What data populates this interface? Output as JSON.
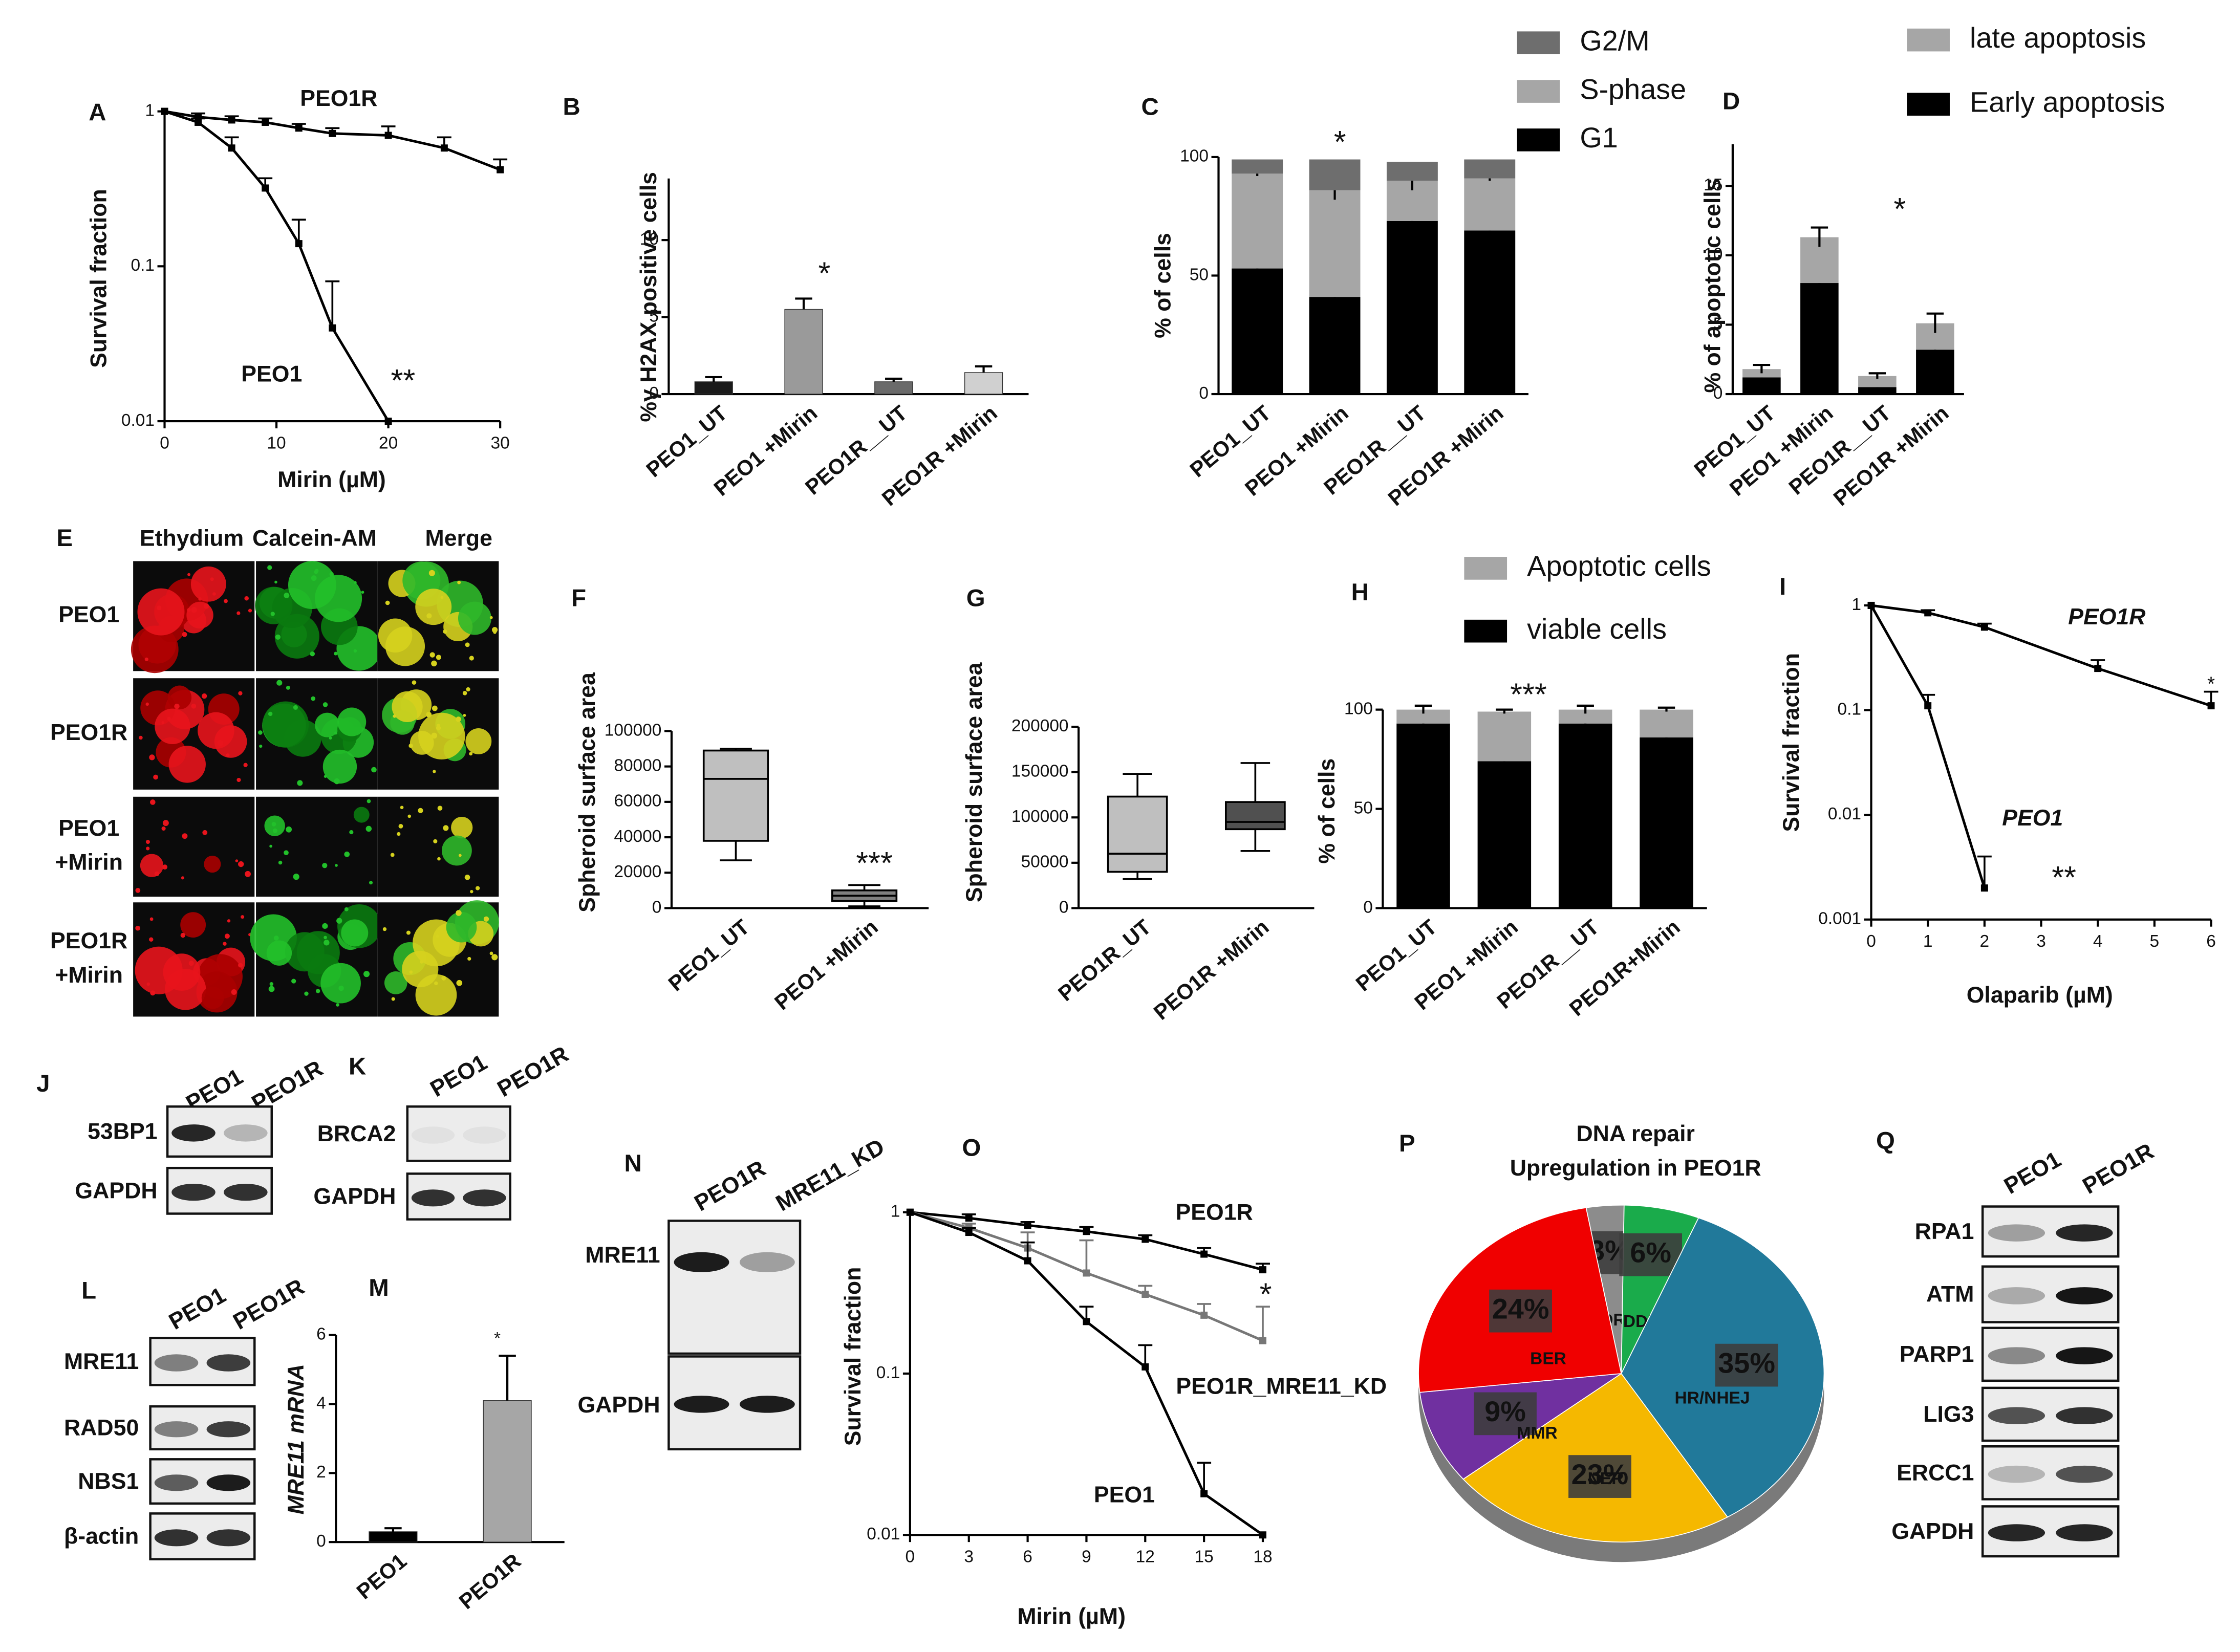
{
  "chart_data": [
    {
      "panel": "A",
      "type": "line",
      "log_y": true,
      "xlabel": "Mirin (µM)",
      "ylabel": "Survival fraction",
      "xlim": [
        0,
        30
      ],
      "xticks": [
        0,
        10,
        20,
        30
      ],
      "ylim": [
        0.01,
        1
      ],
      "yticks": [
        0.01,
        0.1,
        1
      ],
      "series": [
        {
          "name": "PEO1R",
          "color": "#000000",
          "x": [
            0,
            3,
            6,
            9,
            12,
            15,
            20,
            25,
            30
          ],
          "values": [
            1,
            0.92,
            0.88,
            0.85,
            0.78,
            0.72,
            0.7,
            0.58,
            0.42
          ],
          "errors": [
            0,
            0.05,
            0.05,
            0.05,
            0.05,
            0.06,
            0.1,
            0.1,
            0.07
          ]
        },
        {
          "name": "PEO1",
          "color": "#000000",
          "x": [
            0,
            3,
            6,
            9,
            12,
            15,
            20
          ],
          "values": [
            1,
            0.85,
            0.58,
            0.32,
            0.14,
            0.04,
            0.01
          ],
          "errors": [
            0,
            0.05,
            0.1,
            0.05,
            0.06,
            0.04,
            0
          ]
        }
      ],
      "annotations": [
        "**"
      ]
    },
    {
      "panel": "B",
      "type": "bar",
      "ylabel": "%γ H2AX positive  cells",
      "categories": [
        "PEO1_UT",
        "PEO1 +Mirin",
        "PEO1R__UT",
        "PEO1R +Mirin"
      ],
      "values": [
        0.8,
        5.5,
        0.8,
        1.4
      ],
      "errors": [
        0.3,
        0.7,
        0.2,
        0.4
      ],
      "colors": [
        "#1a1a1a",
        "#9a9a9a",
        "#6a6a6a",
        "#d0d0d0"
      ],
      "ylim": [
        0,
        14
      ],
      "yticks": [
        0,
        5,
        10
      ],
      "annotations": [
        "*"
      ]
    },
    {
      "panel": "C",
      "type": "stacked_bar",
      "ylabel": "% of cells",
      "categories": [
        "PEO1_UT",
        "PEO1 +Mirin",
        "PEO1R__UT",
        "PEO1R +Mirin"
      ],
      "ylim": [
        0,
        100
      ],
      "yticks": [
        0,
        50,
        100
      ],
      "series": [
        {
          "name": "G1",
          "color": "#000000",
          "values": [
            53,
            41,
            73,
            69
          ],
          "errors": [
            2,
            1,
            2,
            1
          ]
        },
        {
          "name": "S-phase",
          "color": "#a6a6a6",
          "values": [
            40,
            45,
            17,
            22
          ],
          "errors": [
            1,
            4,
            4,
            1
          ]
        },
        {
          "name": "G2/M",
          "color": "#6e6e6e",
          "values": [
            6,
            13,
            8,
            8
          ]
        }
      ],
      "annotations": [
        "*"
      ]
    },
    {
      "panel": "D",
      "type": "stacked_bar",
      "ylabel": "% of apoptotic cells",
      "categories": [
        "PEO1_UT",
        "PEO1 +Mirin",
        "PEO1R__UT",
        "PEO1R +Mirin"
      ],
      "ylim": [
        0,
        18
      ],
      "yticks": [
        0,
        5,
        10,
        15
      ],
      "series": [
        {
          "name": "Early apoptosis",
          "color": "#000000",
          "values": [
            1.2,
            8,
            0.5,
            3.2
          ],
          "errors": [
            0.3,
            1.5,
            0.3,
            1.2
          ]
        },
        {
          "name": "late apoptosis",
          "color": "#a6a6a6",
          "values": [
            0.6,
            3.3,
            0.8,
            1.9
          ],
          "errors": [
            0.3,
            0.7,
            0.2,
            0.7
          ]
        }
      ],
      "annotations": [
        "*"
      ]
    },
    {
      "panel": "F",
      "type": "box",
      "ylabel": "Spheroid surface area",
      "categories": [
        "PEO1_UT",
        "PEO1 +Mirin"
      ],
      "boxes": [
        [
          27000,
          38000,
          73000,
          89000,
          90000
        ],
        [
          1000,
          4000,
          7000,
          10000,
          13000
        ]
      ],
      "colors": [
        "#bfbfbf",
        "#808080"
      ],
      "ylim": [
        0,
        100000
      ],
      "yticks": [
        0,
        20000,
        40000,
        60000,
        80000,
        100000
      ],
      "annotations": [
        "***"
      ]
    },
    {
      "panel": "G",
      "type": "box",
      "ylabel": "Spheroid surface area",
      "categories": [
        "PEO1R_UT",
        "PEO1R +Mirin"
      ],
      "boxes": [
        [
          32000,
          40000,
          60000,
          123000,
          148000
        ],
        [
          63000,
          87000,
          95000,
          117000,
          160000
        ]
      ],
      "colors": [
        "#bfbfbf",
        "#505050"
      ],
      "ylim": [
        0,
        200000
      ],
      "yticks": [
        0,
        50000,
        100000,
        150000,
        200000
      ]
    },
    {
      "panel": "H",
      "type": "stacked_bar",
      "ylabel": "% of cells",
      "categories": [
        "PEO1_UT",
        "PEO1 +Mirin",
        "PEO1R__UT",
        "PEO1R+Mirin"
      ],
      "ylim": [
        0,
        100
      ],
      "yticks": [
        0,
        50,
        100
      ],
      "series": [
        {
          "name": "viable cells",
          "color": "#000000",
          "values": [
            93,
            74,
            93,
            86
          ],
          "errors": [
            2,
            1,
            2,
            1
          ]
        },
        {
          "name": "Apoptotic cells",
          "color": "#a6a6a6",
          "values": [
            7,
            25,
            7,
            14
          ],
          "errors": [
            2,
            1,
            2,
            1
          ]
        }
      ],
      "annotations": [
        "***"
      ]
    },
    {
      "panel": "I",
      "type": "line",
      "log_y": true,
      "xlabel": "Olaparib (µM)",
      "ylabel": "Survival fraction",
      "xlim": [
        0,
        6
      ],
      "xticks": [
        0,
        1,
        2,
        3,
        4,
        5,
        6
      ],
      "ylim": [
        0.001,
        1
      ],
      "yticks": [
        0.001,
        0.01,
        0.1,
        1
      ],
      "series": [
        {
          "name": "PEO1R",
          "color": "#000000",
          "x": [
            0,
            1,
            2,
            4,
            6
          ],
          "values": [
            1,
            0.85,
            0.62,
            0.25,
            0.11
          ],
          "errors": [
            0,
            0.05,
            0.05,
            0.05,
            0.04
          ]
        },
        {
          "name": "PEO1",
          "color": "#000000",
          "x": [
            0,
            1,
            2
          ],
          "values": [
            1,
            0.11,
            0.002
          ],
          "errors": [
            0,
            0.03,
            0.002
          ]
        }
      ],
      "annotations": [
        "**",
        "*"
      ]
    },
    {
      "panel": "M",
      "type": "bar",
      "ylabel": "MRE11 mRNA",
      "categories": [
        "PEO1",
        "PEO1R"
      ],
      "values": [
        0.3,
        4.1
      ],
      "errors": [
        0.1,
        1.3
      ],
      "colors": [
        "#000000",
        "#a6a6a6"
      ],
      "ylim": [
        0,
        6
      ],
      "yticks": [
        0,
        2,
        4,
        6
      ],
      "annotations": [
        "*"
      ]
    },
    {
      "panel": "O",
      "type": "line",
      "log_y": true,
      "xlabel": "Mirin (µM)",
      "ylabel": "Survival fraction",
      "xlim": [
        0,
        18
      ],
      "xticks": [
        0,
        3,
        6,
        9,
        12,
        15,
        18
      ],
      "ylim": [
        0.01,
        1
      ],
      "yticks": [
        0.01,
        0.1,
        1
      ],
      "series": [
        {
          "name": "PEO1R",
          "color": "#000000",
          "x": [
            0,
            3,
            6,
            9,
            12,
            15,
            18
          ],
          "values": [
            1,
            0.92,
            0.83,
            0.76,
            0.68,
            0.55,
            0.44
          ],
          "errors": [
            0,
            0.05,
            0.04,
            0.05,
            0.04,
            0.05,
            0.04
          ]
        },
        {
          "name": "PEO1R_MRE11_KD",
          "color": "#777777",
          "x": [
            0,
            3,
            6,
            9,
            12,
            15,
            18
          ],
          "values": [
            1,
            0.8,
            0.6,
            0.42,
            0.31,
            0.23,
            0.16
          ],
          "errors": [
            0,
            0.05,
            0.15,
            0.25,
            0.04,
            0.04,
            0.1
          ]
        },
        {
          "name": "PEO1",
          "color": "#000000",
          "x": [
            0,
            3,
            6,
            9,
            12,
            15,
            18
          ],
          "values": [
            1,
            0.75,
            0.5,
            0.21,
            0.11,
            0.018,
            0.01
          ],
          "errors": [
            0,
            0.05,
            0.15,
            0.05,
            0.04,
            0.01,
            0
          ]
        }
      ],
      "annotations": [
        "*"
      ]
    },
    {
      "panel": "P",
      "type": "pie",
      "title": [
        "DNA repair",
        "Upregulation in PEO1R"
      ],
      "categories": [
        "DR",
        "DDR",
        "HR/NHEJ",
        "NER",
        "MMR",
        "BER"
      ],
      "values": [
        3,
        6,
        35,
        23,
        9,
        24
      ],
      "value_labels": [
        "3%",
        "6%",
        "35%",
        "23%",
        "9%",
        "24%"
      ],
      "colors": [
        "#8c8c8c",
        "#1aab4b",
        "#21799a",
        "#f5b800",
        "#7030a0",
        "#f00000"
      ]
    }
  ],
  "micrograph": {
    "panel": "E",
    "columns": [
      "Ethydium",
      "Calcein-AM",
      "Merge"
    ],
    "rows": [
      [
        "PEO1"
      ],
      [
        "PEO1R"
      ],
      [
        "PEO1",
        "+Mirin"
      ],
      [
        "PEO1R",
        "+Mirin"
      ]
    ]
  },
  "blots": [
    {
      "panel": "J",
      "lanes": [
        "PEO1",
        "PEO1R"
      ],
      "rows": [
        "53BP1",
        "GAPDH"
      ]
    },
    {
      "panel": "K",
      "lanes": [
        "PEO1",
        "PEO1R"
      ],
      "rows": [
        "BRCA2",
        "GAPDH"
      ]
    },
    {
      "panel": "L",
      "lanes": [
        "PEO1",
        "PEO1R"
      ],
      "rows": [
        "MRE11",
        "RAD50",
        "NBS1",
        "β-actin"
      ]
    },
    {
      "panel": "N",
      "lanes": [
        "PEO1R",
        "MRE11_KD"
      ],
      "rows": [
        "MRE11",
        "GAPDH"
      ]
    },
    {
      "panel": "Q",
      "lanes": [
        "PEO1",
        "PEO1R"
      ],
      "rows": [
        "RPA1",
        "ATM",
        "PARP1",
        "LIG3",
        "ERCC1",
        "GAPDH"
      ]
    }
  ]
}
